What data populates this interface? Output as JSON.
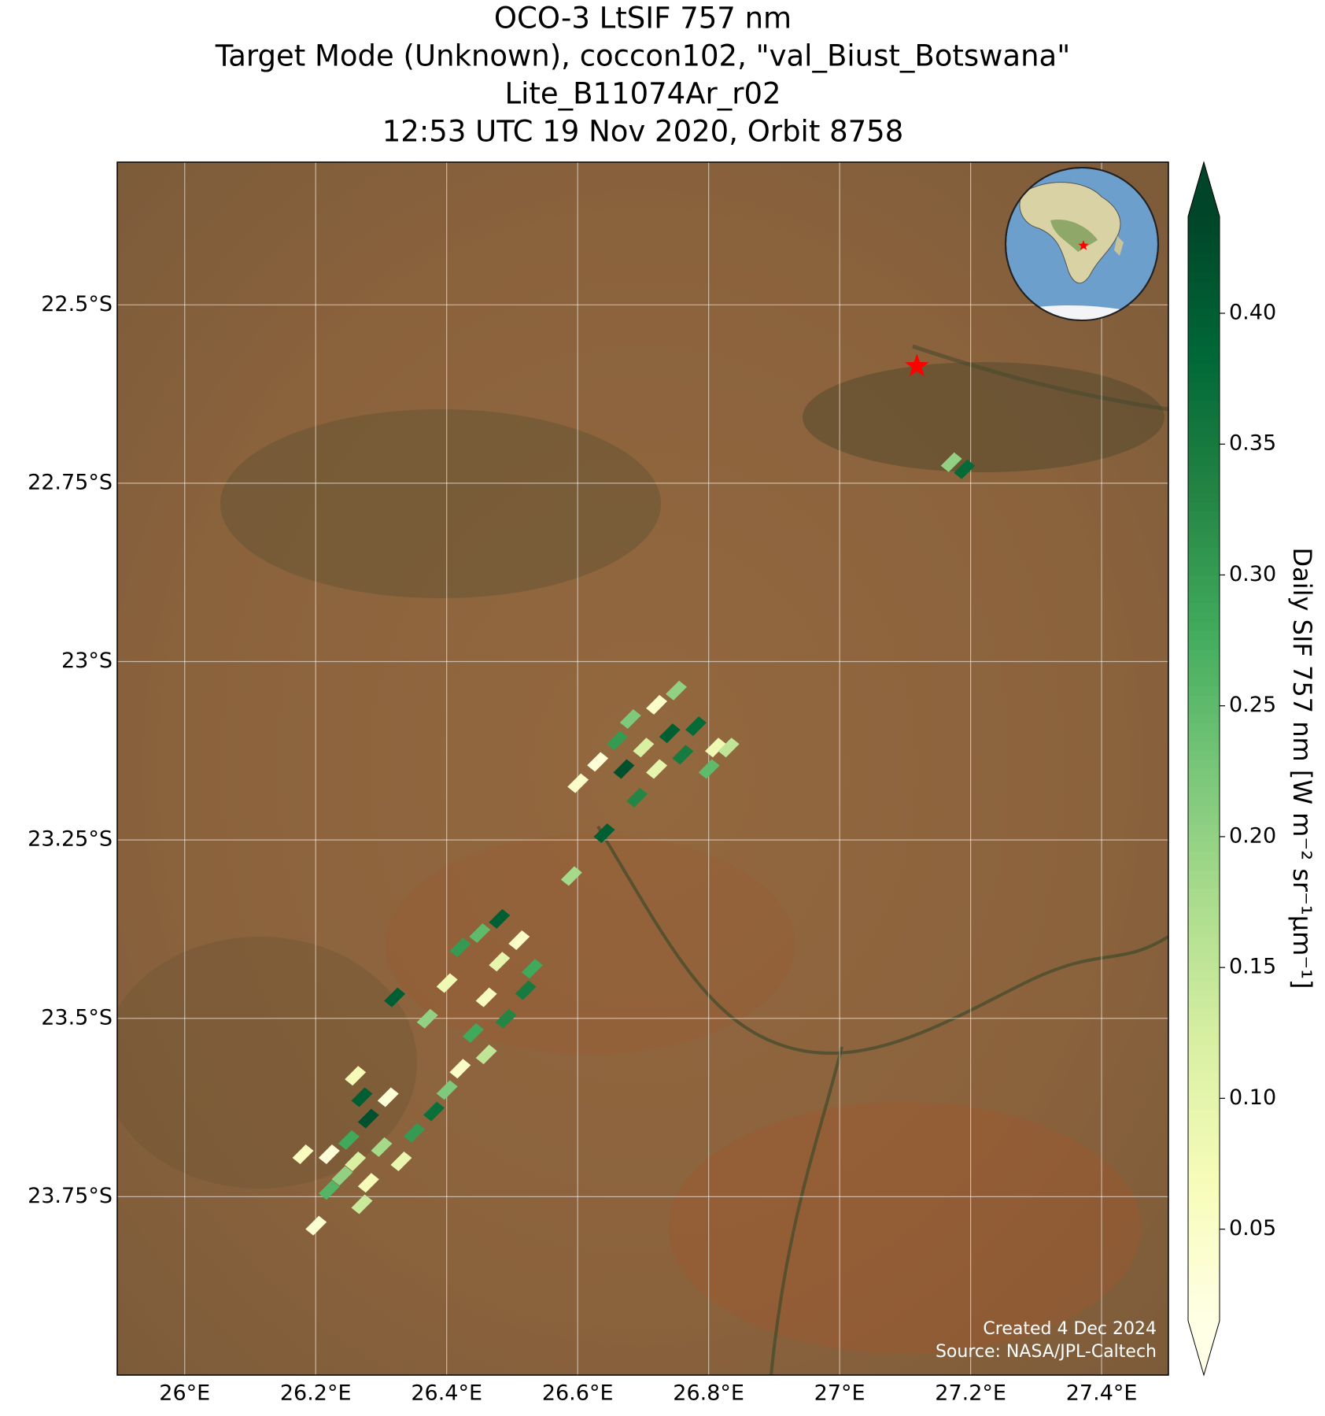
{
  "chart_data": {
    "type": "map",
    "title": [
      "OCO-3 LtSIF 757 nm",
      "Target Mode (Unknown), coccon102, \"val_Biust_Botswana\"",
      "Lite_B11074Ar_r02",
      "12:53 UTC 19 Nov 2020, Orbit 8758"
    ],
    "xlim": [
      25.897,
      27.502
    ],
    "ylim": [
      -24.0,
      -22.3
    ],
    "xticks": [
      {
        "value": 26.0,
        "label": "26°E"
      },
      {
        "value": 26.2,
        "label": "26.2°E"
      },
      {
        "value": 26.4,
        "label": "26.4°E"
      },
      {
        "value": 26.6,
        "label": "26.6°E"
      },
      {
        "value": 26.8,
        "label": "26.8°E"
      },
      {
        "value": 27.0,
        "label": "27°E"
      },
      {
        "value": 27.2,
        "label": "27.2°E"
      },
      {
        "value": 27.4,
        "label": "27.4°E"
      }
    ],
    "yticks": [
      {
        "value": -22.5,
        "label": "22.5°S"
      },
      {
        "value": -22.75,
        "label": "22.75°S"
      },
      {
        "value": -23.0,
        "label": "23°S"
      },
      {
        "value": -23.25,
        "label": "23.25°S"
      },
      {
        "value": -23.5,
        "label": "23.5°S"
      },
      {
        "value": -23.75,
        "label": "23.75°S"
      }
    ],
    "grid": true,
    "colormap": "YlGn",
    "clim": [
      0.015,
      0.437
    ],
    "cticks": [
      {
        "value": 0.05,
        "label": "0.05"
      },
      {
        "value": 0.1,
        "label": "0.10"
      },
      {
        "value": 0.15,
        "label": "0.15"
      },
      {
        "value": 0.2,
        "label": "0.20"
      },
      {
        "value": 0.25,
        "label": "0.25"
      },
      {
        "value": 0.3,
        "label": "0.30"
      },
      {
        "value": 0.35,
        "label": "0.35"
      },
      {
        "value": 0.4,
        "label": "0.40"
      }
    ],
    "colorbar_label": "Daily SIF 757 nm [W m⁻² sr⁻¹μm⁻¹]",
    "site": {
      "lon": 27.118,
      "lat": -22.586,
      "color": "#ff0000"
    },
    "lon": [
      26.68,
      26.72,
      26.66,
      26.7,
      26.74,
      26.78,
      26.81,
      26.63,
      26.67,
      26.72,
      26.76,
      26.8,
      26.6,
      26.69,
      26.75,
      26.64,
      26.83,
      26.59,
      27.17,
      27.19,
      26.48,
      26.45,
      26.51,
      26.42,
      26.48,
      26.53,
      26.4,
      26.46,
      26.52,
      26.49,
      26.37,
      26.32,
      26.44,
      26.46,
      26.42,
      26.4,
      26.38,
      26.35,
      26.31,
      26.28,
      26.25,
      26.22,
      26.26,
      26.3,
      26.33,
      26.24,
      26.28,
      26.22,
      26.27,
      26.2,
      26.18,
      26.26,
      26.27
    ],
    "lat": [
      -23.08,
      -23.06,
      -23.11,
      -23.12,
      -23.1,
      -23.09,
      -23.12,
      -23.14,
      -23.15,
      -23.15,
      -23.13,
      -23.15,
      -23.17,
      -23.19,
      -23.04,
      -23.24,
      -23.12,
      -23.3,
      -22.72,
      -22.73,
      -23.36,
      -23.38,
      -23.39,
      -23.4,
      -23.42,
      -23.43,
      -23.45,
      -23.47,
      -23.46,
      -23.5,
      -23.5,
      -23.47,
      -23.52,
      -23.55,
      -23.57,
      -23.6,
      -23.63,
      -23.66,
      -23.61,
      -23.64,
      -23.67,
      -23.69,
      -23.7,
      -23.68,
      -23.7,
      -23.72,
      -23.73,
      -23.74,
      -23.76,
      -23.79,
      -23.69,
      -23.58,
      -23.61
    ],
    "values": [
      0.22,
      0.05,
      0.3,
      0.12,
      0.4,
      0.38,
      0.08,
      0.03,
      0.42,
      0.1,
      0.35,
      0.25,
      0.05,
      0.33,
      0.2,
      0.4,
      0.15,
      0.18,
      0.2,
      0.38,
      0.4,
      0.25,
      0.05,
      0.3,
      0.1,
      0.28,
      0.08,
      0.06,
      0.35,
      0.33,
      0.2,
      0.4,
      0.28,
      0.15,
      0.05,
      0.22,
      0.37,
      0.3,
      0.03,
      0.42,
      0.28,
      0.03,
      0.12,
      0.18,
      0.09,
      0.2,
      0.07,
      0.26,
      0.14,
      0.04,
      0.06,
      0.07,
      0.4
    ],
    "credits": [
      "Created 4 Dec 2024",
      "Source: NASA/JPL-Caltech"
    ]
  }
}
